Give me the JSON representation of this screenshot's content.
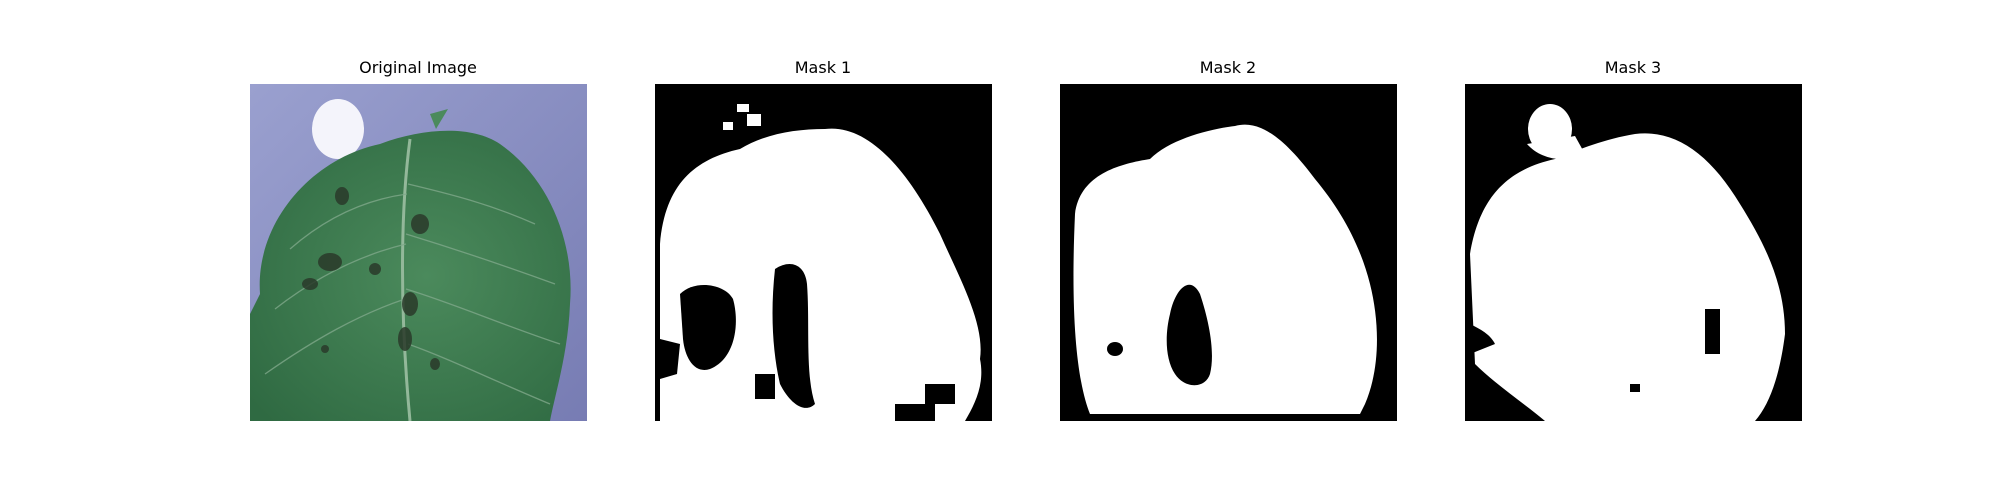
{
  "panels": [
    {
      "title": "Original Image",
      "kind": "photo",
      "subject": "leaf"
    },
    {
      "title": "Mask 1",
      "kind": "mask"
    },
    {
      "title": "Mask 2",
      "kind": "mask"
    },
    {
      "title": "Mask 3",
      "kind": "mask"
    }
  ],
  "colors": {
    "background": "#ffffff",
    "mask_foreground": "#ffffff",
    "mask_background": "#000000",
    "leaf_green": "#3f7a4f",
    "photo_backdrop": "#8e93c6"
  }
}
